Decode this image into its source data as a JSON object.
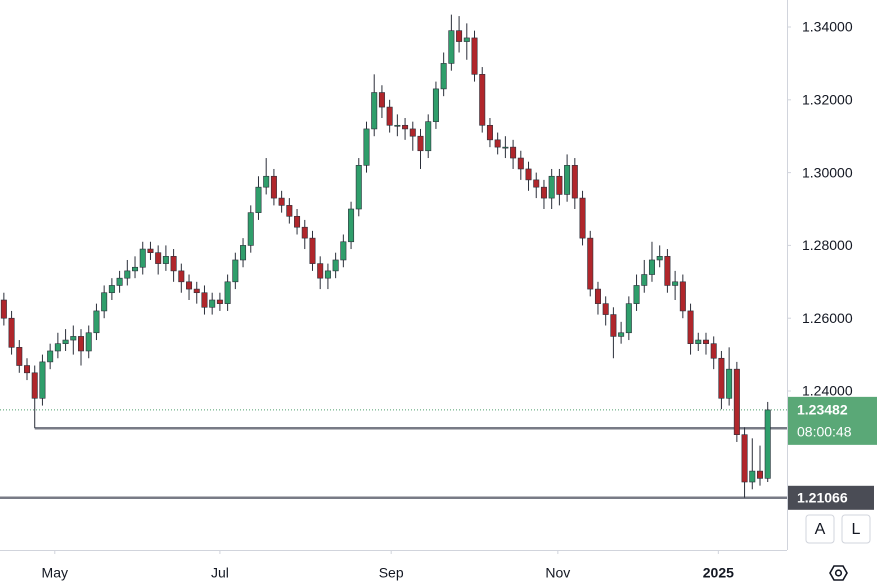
{
  "chart_data": {
    "type": "candlestick",
    "xlim": [
      -0.5,
      101.5
    ],
    "xticks": [
      {
        "value": 6.6,
        "label": "May"
      },
      {
        "value": 28.0,
        "label": "Jul"
      },
      {
        "value": 50.2,
        "label": "Sep"
      },
      {
        "value": 71.8,
        "label": "Nov"
      },
      {
        "value": 92.6,
        "label": "2025"
      }
    ],
    "ylim": [
      1.19632,
      1.34742
    ],
    "yticks": [
      {
        "value": 1.24,
        "label": "1.24000"
      },
      {
        "value": 1.26,
        "label": "1.26000"
      },
      {
        "value": 1.28,
        "label": "1.28000"
      },
      {
        "value": 1.3,
        "label": "1.30000"
      },
      {
        "value": 1.32,
        "label": "1.32000"
      },
      {
        "value": 1.34,
        "label": "1.34000"
      }
    ],
    "up_color": "#2f9e6b",
    "down_color": "#b0262b",
    "open": [
      1.265,
      1.26,
      1.252,
      1.247,
      1.245,
      1.238,
      1.248,
      1.251,
      1.253,
      1.254,
      1.255,
      1.251,
      1.256,
      1.262,
      1.267,
      1.269,
      1.271,
      1.273,
      1.274,
      1.279,
      1.278,
      1.275,
      1.277,
      1.273,
      1.27,
      1.268,
      1.267,
      1.263,
      1.265,
      1.264,
      1.27,
      1.276,
      1.28,
      1.289,
      1.296,
      1.299,
      1.293,
      1.291,
      1.288,
      1.285,
      1.282,
      1.275,
      1.271,
      1.273,
      1.276,
      1.281,
      1.29,
      1.302,
      1.312,
      1.322,
      1.318,
      1.313,
      1.313,
      1.312,
      1.31,
      1.306,
      1.314,
      1.323,
      1.33,
      1.339,
      1.336,
      1.337,
      1.327,
      1.313,
      1.309,
      1.307,
      1.307,
      1.304,
      1.301,
      1.298,
      1.296,
      1.293,
      1.299,
      1.294,
      1.302,
      1.293,
      1.282,
      1.268,
      1.264,
      1.261,
      1.255,
      1.256,
      1.264,
      1.269,
      1.272,
      1.276,
      1.277,
      1.269,
      1.27,
      1.262,
      1.253,
      1.254,
      1.253,
      1.249,
      1.238,
      1.246,
      1.228,
      1.215,
      1.218,
      1.216
    ],
    "high": [
      1.267,
      1.262,
      1.254,
      1.249,
      1.247,
      1.25,
      1.253,
      1.256,
      1.257,
      1.258,
      1.257,
      1.258,
      1.264,
      1.269,
      1.271,
      1.273,
      1.276,
      1.277,
      1.281,
      1.281,
      1.28,
      1.28,
      1.279,
      1.275,
      1.272,
      1.27,
      1.269,
      1.267,
      1.267,
      1.272,
      1.278,
      1.282,
      1.291,
      1.299,
      1.304,
      1.301,
      1.295,
      1.293,
      1.29,
      1.287,
      1.284,
      1.277,
      1.275,
      1.278,
      1.283,
      1.292,
      1.304,
      1.314,
      1.327,
      1.324,
      1.32,
      1.316,
      1.315,
      1.314,
      1.312,
      1.316,
      1.325,
      1.333,
      1.3434,
      1.343,
      1.341,
      1.339,
      1.329,
      1.315,
      1.311,
      1.31,
      1.309,
      1.306,
      1.303,
      1.3,
      1.298,
      1.301,
      1.301,
      1.305,
      1.304,
      1.295,
      1.284,
      1.27,
      1.266,
      1.263,
      1.259,
      1.266,
      1.272,
      1.276,
      1.281,
      1.28,
      1.279,
      1.273,
      1.272,
      1.264,
      1.256,
      1.256,
      1.255,
      1.251,
      1.252,
      1.248,
      1.23,
      1.227,
      1.225,
      1.237
    ],
    "low": [
      1.258,
      1.25,
      1.245,
      1.243,
      1.2298,
      1.236,
      1.246,
      1.249,
      1.251,
      1.25,
      1.247,
      1.249,
      1.254,
      1.26,
      1.265,
      1.267,
      1.269,
      1.271,
      1.272,
      1.276,
      1.272,
      1.273,
      1.27,
      1.267,
      1.265,
      1.264,
      1.261,
      1.261,
      1.262,
      1.262,
      1.268,
      1.274,
      1.278,
      1.287,
      1.294,
      1.291,
      1.289,
      1.286,
      1.283,
      1.279,
      1.273,
      1.268,
      1.268,
      1.271,
      1.274,
      1.279,
      1.288,
      1.3,
      1.31,
      1.315,
      1.311,
      1.31,
      1.309,
      1.306,
      1.301,
      1.304,
      1.312,
      1.321,
      1.328,
      1.333,
      1.331,
      1.325,
      1.311,
      1.307,
      1.305,
      1.304,
      1.301,
      1.298,
      1.295,
      1.293,
      1.29,
      1.29,
      1.291,
      1.292,
      1.29,
      1.28,
      1.266,
      1.261,
      1.258,
      1.249,
      1.253,
      1.254,
      1.262,
      1.267,
      1.27,
      1.274,
      1.267,
      1.265,
      1.26,
      1.25,
      1.251,
      1.25,
      1.246,
      1.235,
      1.236,
      1.226,
      1.2107,
      1.213,
      1.214,
      1.215
    ],
    "close": [
      1.26,
      1.252,
      1.247,
      1.245,
      1.238,
      1.248,
      1.251,
      1.253,
      1.254,
      1.255,
      1.251,
      1.256,
      1.262,
      1.267,
      1.269,
      1.271,
      1.273,
      1.274,
      1.279,
      1.278,
      1.275,
      1.277,
      1.273,
      1.27,
      1.268,
      1.267,
      1.263,
      1.265,
      1.264,
      1.27,
      1.276,
      1.28,
      1.289,
      1.296,
      1.299,
      1.293,
      1.291,
      1.288,
      1.285,
      1.282,
      1.275,
      1.271,
      1.273,
      1.276,
      1.281,
      1.29,
      1.302,
      1.312,
      1.322,
      1.318,
      1.313,
      1.313,
      1.312,
      1.31,
      1.306,
      1.314,
      1.323,
      1.33,
      1.339,
      1.336,
      1.337,
      1.327,
      1.313,
      1.309,
      1.307,
      1.307,
      1.304,
      1.301,
      1.298,
      1.296,
      1.293,
      1.299,
      1.294,
      1.302,
      1.293,
      1.282,
      1.268,
      1.264,
      1.261,
      1.255,
      1.256,
      1.264,
      1.269,
      1.272,
      1.276,
      1.277,
      1.269,
      1.27,
      1.262,
      1.253,
      1.254,
      1.253,
      1.249,
      1.238,
      1.246,
      1.228,
      1.215,
      1.218,
      1.216,
      1.2348
    ],
    "levels": [
      {
        "value": 1.22978,
        "start": 4
      },
      {
        "value": 1.21066
      }
    ],
    "last_price": 1.23482,
    "countdown": "08:00:48",
    "buttons": [
      "A",
      "L"
    ]
  }
}
